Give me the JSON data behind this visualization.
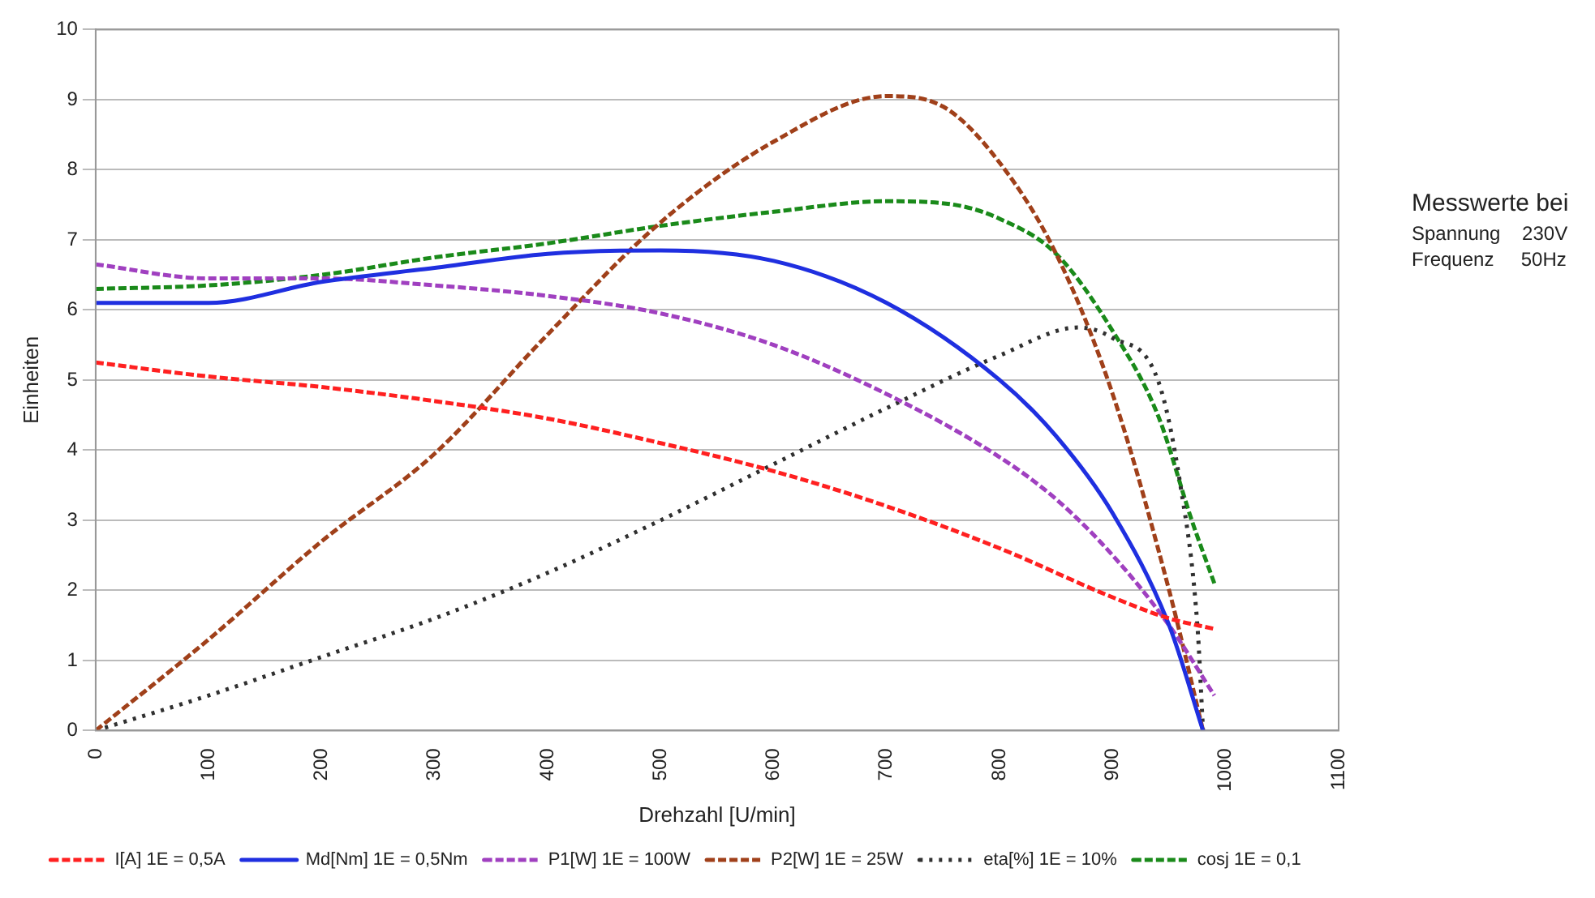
{
  "chart_data": {
    "type": "line",
    "xlabel": "Drehzahl [U/min]",
    "ylabel": "Einheiten",
    "xlim": [
      0,
      1100
    ],
    "xticks": [
      0,
      100,
      200,
      300,
      400,
      500,
      600,
      700,
      800,
      900,
      1000,
      1100
    ],
    "ylim": [
      0,
      10
    ],
    "yticks": [
      0,
      1,
      2,
      3,
      4,
      5,
      6,
      7,
      8,
      9,
      10
    ],
    "grid": "y",
    "legend": "bottom",
    "marker": "none",
    "annotations": [
      "Messwerte bei",
      "Spannung    230V",
      "Frequenz     50Hz"
    ],
    "series": [
      {
        "name": "I[A] 1E = 0,5A",
        "color": "#ff2020",
        "line_style": "dashed",
        "x": [
          0,
          100,
          200,
          300,
          400,
          500,
          600,
          700,
          800,
          900,
          950,
          990
        ],
        "values": [
          5.25,
          5.05,
          4.9,
          4.7,
          4.45,
          4.1,
          3.7,
          3.2,
          2.6,
          1.9,
          1.6,
          1.45
        ]
      },
      {
        "name": "Md[Nm] 1E = 0,5Nm",
        "color": "#1f2fe0",
        "line_style": "solid",
        "x": [
          0,
          100,
          200,
          300,
          400,
          500,
          600,
          700,
          800,
          850,
          900,
          950,
          980
        ],
        "values": [
          6.1,
          6.1,
          6.4,
          6.6,
          6.8,
          6.85,
          6.7,
          6.1,
          5.0,
          4.2,
          3.1,
          1.5,
          0
        ]
      },
      {
        "name": "P1[W] 1E = 100W",
        "color": "#a040c0",
        "line_style": "dashed",
        "x": [
          0,
          100,
          200,
          300,
          400,
          500,
          600,
          700,
          800,
          850,
          900,
          950,
          990
        ],
        "values": [
          6.65,
          6.45,
          6.45,
          6.35,
          6.2,
          5.95,
          5.5,
          4.8,
          3.9,
          3.3,
          2.5,
          1.5,
          0.5
        ]
      },
      {
        "name": "P2[W] 1E = 25W",
        "color": "#a0401a",
        "line_style": "dashed",
        "x": [
          0,
          100,
          200,
          300,
          400,
          500,
          600,
          700,
          750,
          800,
          850,
          900,
          950,
          980
        ],
        "values": [
          0,
          1.3,
          2.7,
          3.95,
          5.65,
          7.25,
          8.4,
          9.05,
          8.9,
          8.1,
          6.8,
          4.8,
          2.0,
          0
        ]
      },
      {
        "name": "eta[%] 1E = 10%",
        "color": "#303030",
        "line_style": "dotted",
        "x": [
          0,
          100,
          200,
          300,
          400,
          500,
          600,
          700,
          800,
          870,
          900,
          940,
          960,
          975,
          980
        ],
        "values": [
          0,
          0.5,
          1.05,
          1.6,
          2.25,
          3.0,
          3.8,
          4.6,
          5.35,
          5.75,
          5.6,
          5.0,
          3.5,
          1.5,
          0
        ]
      },
      {
        "name": "cosj 1E = 0,1",
        "color": "#1a8a1a",
        "line_style": "dashed",
        "x": [
          0,
          100,
          200,
          300,
          400,
          500,
          600,
          700,
          760,
          800,
          850,
          900,
          940,
          970,
          990
        ],
        "values": [
          6.3,
          6.35,
          6.5,
          6.75,
          6.95,
          7.2,
          7.4,
          7.55,
          7.5,
          7.3,
          6.8,
          5.7,
          4.5,
          3.0,
          2.1
        ]
      }
    ]
  }
}
